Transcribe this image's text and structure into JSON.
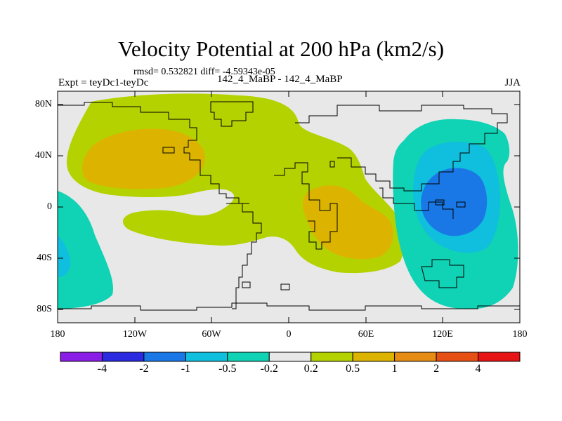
{
  "title": "Velocity Potential at 200 hPa (km2/s)",
  "stats": "rmsd= 0.532821  diff= -4.59343e-05",
  "left_label": "Expt = teyDc1-teyDc",
  "center_label": "142_4_MaBP - 142_4_MaBP",
  "right_label": "JJA",
  "lat_labels": [
    "80N",
    "40N",
    "0",
    "40S",
    "80S"
  ],
  "lon_labels": [
    "180",
    "120W",
    "60W",
    "0",
    "60E",
    "120E",
    "180"
  ],
  "colorbar": {
    "colors": [
      "#8a1ee6",
      "#2a2ae0",
      "#1a78e6",
      "#10bedd",
      "#10d2b4",
      "#e8e8e8",
      "#b4d200",
      "#dcb400",
      "#e68c14",
      "#e65014",
      "#e61414"
    ],
    "labels": [
      "-4",
      "-2",
      "-1",
      "-0.5",
      "-0.2",
      "0.2",
      "0.5",
      "1",
      "2",
      "4"
    ]
  },
  "fill_colors": {
    "background": "#e8e8e8",
    "positive_1": "#b4d200",
    "positive_2": "#dcb400",
    "negative_1": "#10d2b4",
    "negative_2": "#10bedd",
    "negative_3": "#1a78e6"
  }
}
